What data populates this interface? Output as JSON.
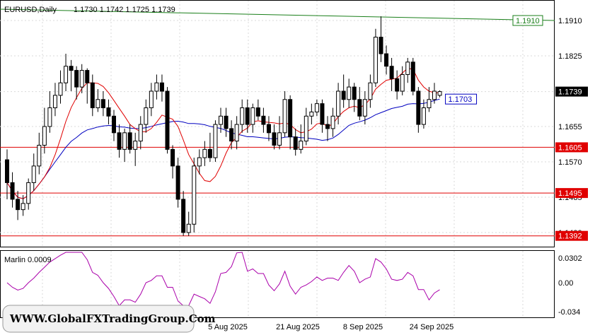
{
  "header": {
    "symbol": "EURUSD,Daily",
    "ohlc": "1.1730 1.1742 1.1725 1.1739"
  },
  "indicator": {
    "label": "Marlin 0.0009",
    "ticks": [
      "0.0302",
      "0.00",
      "-0.034"
    ]
  },
  "watermark": "WWW.GlobalFXTradingGroup.Com",
  "colors": {
    "green": "#1a7f1a",
    "red": "#e00000",
    "blue": "#0000c0",
    "purple": "#aa00aa"
  },
  "chart_data": {
    "type": "candlestick",
    "symbol": "EURUSD",
    "timeframe": "Daily",
    "price_ticks": [
      "1.1910",
      "1.1825",
      "1.1739",
      "1.1655",
      "1.1570",
      "1.1485",
      "1.1400"
    ],
    "date_labels": [
      "5 Aug 2025",
      "21 Aug 2025",
      "8 Sep 2025",
      "24 Sep 2025"
    ],
    "levels": [
      {
        "value": 1.191,
        "label": "1.1910",
        "color": "#1a7f1a",
        "kind": "trendline"
      },
      {
        "value": 1.1605,
        "label": "1.1605",
        "color": "#e00000",
        "kind": "horizontal"
      },
      {
        "value": 1.1495,
        "label": "1.1495",
        "color": "#e00000",
        "kind": "horizontal"
      },
      {
        "value": 1.1392,
        "label": "1.1392",
        "color": "#e00000",
        "kind": "horizontal"
      }
    ],
    "current_price": {
      "value": 1.1739,
      "label": "1.1739"
    },
    "ma_blue_label": "1.1703",
    "candles": [
      [
        1.1575,
        1.152,
        1.16,
        1.148
      ],
      [
        1.152,
        1.148,
        1.1545,
        1.146
      ],
      [
        1.148,
        1.1455,
        1.15,
        1.143
      ],
      [
        1.1455,
        1.147,
        1.149,
        1.144
      ],
      [
        1.147,
        1.152,
        1.153,
        1.1455
      ],
      [
        1.152,
        1.156,
        1.159,
        1.15
      ],
      [
        1.156,
        1.161,
        1.164,
        1.154
      ],
      [
        1.161,
        1.1655,
        1.17,
        1.159
      ],
      [
        1.1655,
        1.17,
        1.174,
        1.164
      ],
      [
        1.17,
        1.173,
        1.176,
        1.168
      ],
      [
        1.173,
        1.176,
        1.179,
        1.171
      ],
      [
        1.176,
        1.18,
        1.183,
        1.174
      ],
      [
        1.18,
        1.179,
        1.1815,
        1.174
      ],
      [
        1.179,
        1.175,
        1.18,
        1.172
      ],
      [
        1.175,
        1.179,
        1.1805,
        1.1735
      ],
      [
        1.179,
        1.176,
        1.1795,
        1.171
      ],
      [
        1.176,
        1.17,
        1.178,
        1.168
      ],
      [
        1.17,
        1.172,
        1.1745,
        1.169
      ],
      [
        1.172,
        1.17,
        1.174,
        1.168
      ],
      [
        1.17,
        1.168,
        1.172,
        1.166
      ],
      [
        1.168,
        1.164,
        1.1695,
        1.162
      ],
      [
        1.164,
        1.16,
        1.166,
        1.158
      ],
      [
        1.16,
        1.164,
        1.165,
        1.157
      ],
      [
        1.164,
        1.16,
        1.166,
        1.159
      ],
      [
        1.16,
        1.162,
        1.164,
        1.156
      ],
      [
        1.162,
        1.166,
        1.168,
        1.16
      ],
      [
        1.166,
        1.17,
        1.172,
        1.164
      ],
      [
        1.17,
        1.174,
        1.176,
        1.168
      ],
      [
        1.174,
        1.176,
        1.178,
        1.172
      ],
      [
        1.176,
        1.174,
        1.178,
        1.1715
      ],
      [
        1.174,
        1.16,
        1.175,
        1.159
      ],
      [
        1.16,
        1.156,
        1.161,
        1.153
      ],
      [
        1.156,
        1.148,
        1.158,
        1.146
      ],
      [
        1.148,
        1.14,
        1.15,
        1.1392
      ],
      [
        1.14,
        1.142,
        1.145,
        1.1392
      ],
      [
        1.142,
        1.156,
        1.158,
        1.14
      ],
      [
        1.156,
        1.158,
        1.16,
        1.154
      ],
      [
        1.158,
        1.16,
        1.162,
        1.156
      ],
      [
        1.16,
        1.158,
        1.164,
        1.157
      ],
      [
        1.158,
        1.166,
        1.167,
        1.157
      ],
      [
        1.166,
        1.168,
        1.17,
        1.164
      ],
      [
        1.168,
        1.165,
        1.17,
        1.163
      ],
      [
        1.165,
        1.162,
        1.167,
        1.16
      ],
      [
        1.162,
        1.166,
        1.168,
        1.16
      ],
      [
        1.166,
        1.17,
        1.172,
        1.164
      ],
      [
        1.17,
        1.166,
        1.172,
        1.164
      ],
      [
        1.166,
        1.17,
        1.171,
        1.164
      ],
      [
        1.17,
        1.168,
        1.172,
        1.167
      ],
      [
        1.168,
        1.166,
        1.17,
        1.164
      ],
      [
        1.166,
        1.164,
        1.168,
        1.162
      ],
      [
        1.164,
        1.161,
        1.166,
        1.16
      ],
      [
        1.161,
        1.164,
        1.168,
        1.16
      ],
      [
        1.164,
        1.172,
        1.174,
        1.163
      ],
      [
        1.172,
        1.163,
        1.173,
        1.16
      ],
      [
        1.163,
        1.16,
        1.165,
        1.1585
      ],
      [
        1.16,
        1.162,
        1.166,
        1.159
      ],
      [
        1.162,
        1.168,
        1.17,
        1.161
      ],
      [
        1.168,
        1.169,
        1.171,
        1.166
      ],
      [
        1.169,
        1.171,
        1.172,
        1.168
      ],
      [
        1.171,
        1.166,
        1.172,
        1.164
      ],
      [
        1.166,
        1.165,
        1.168,
        1.162
      ],
      [
        1.165,
        1.168,
        1.17,
        1.163
      ],
      [
        1.168,
        1.174,
        1.176,
        1.166
      ],
      [
        1.174,
        1.172,
        1.178,
        1.17
      ],
      [
        1.172,
        1.175,
        1.177,
        1.17
      ],
      [
        1.175,
        1.172,
        1.176,
        1.169
      ],
      [
        1.172,
        1.168,
        1.175,
        1.167
      ],
      [
        1.168,
        1.172,
        1.174,
        1.166
      ],
      [
        1.172,
        1.176,
        1.178,
        1.17
      ],
      [
        1.176,
        1.187,
        1.189,
        1.175
      ],
      [
        1.187,
        1.183,
        1.192,
        1.181
      ],
      [
        1.183,
        1.18,
        1.185,
        1.178
      ],
      [
        1.18,
        1.177,
        1.182,
        1.174
      ],
      [
        1.177,
        1.174,
        1.179,
        1.172
      ],
      [
        1.174,
        1.178,
        1.18,
        1.173
      ],
      [
        1.178,
        1.181,
        1.182,
        1.176
      ],
      [
        1.181,
        1.174,
        1.182,
        1.173
      ],
      [
        1.174,
        1.166,
        1.175,
        1.164
      ],
      [
        1.166,
        1.17,
        1.172,
        1.165
      ],
      [
        1.17,
        1.172,
        1.175,
        1.169
      ],
      [
        1.172,
        1.174,
        1.176,
        1.171
      ],
      [
        1.173,
        1.1739,
        1.1742,
        1.1725
      ]
    ]
  }
}
